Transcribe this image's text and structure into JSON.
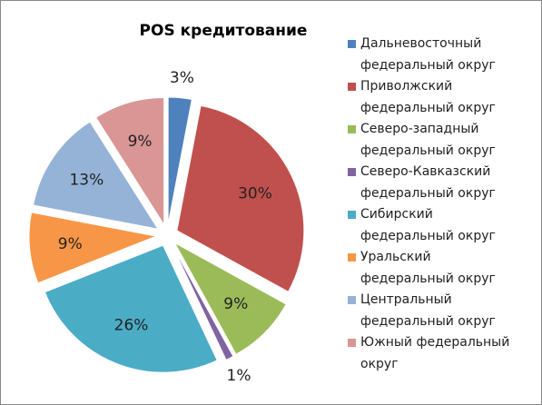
{
  "chart_data": {
    "type": "pie",
    "title": "POS кредитование",
    "categories": [
      "Дальневосточный федеральный округ",
      "Приволжский федеральный округ",
      "Северо-западный федеральный округ",
      "Северо-Кавказский федеральный округ",
      "Сибирский федеральный округ",
      "Уральский федеральный округ",
      "Центральный федеральный округ",
      "Южный федеральный округ"
    ],
    "values": [
      3,
      30,
      9,
      1,
      26,
      9,
      13,
      9
    ],
    "value_labels": [
      "3%",
      "30%",
      "9%",
      "1%",
      "26%",
      "9%",
      "13%",
      "9%"
    ],
    "colors": [
      "#4f81bd",
      "#c0504d",
      "#9bbb59",
      "#8064a2",
      "#4bacc6",
      "#f79646",
      "#95b3d7",
      "#d99694"
    ],
    "legend": "right"
  }
}
